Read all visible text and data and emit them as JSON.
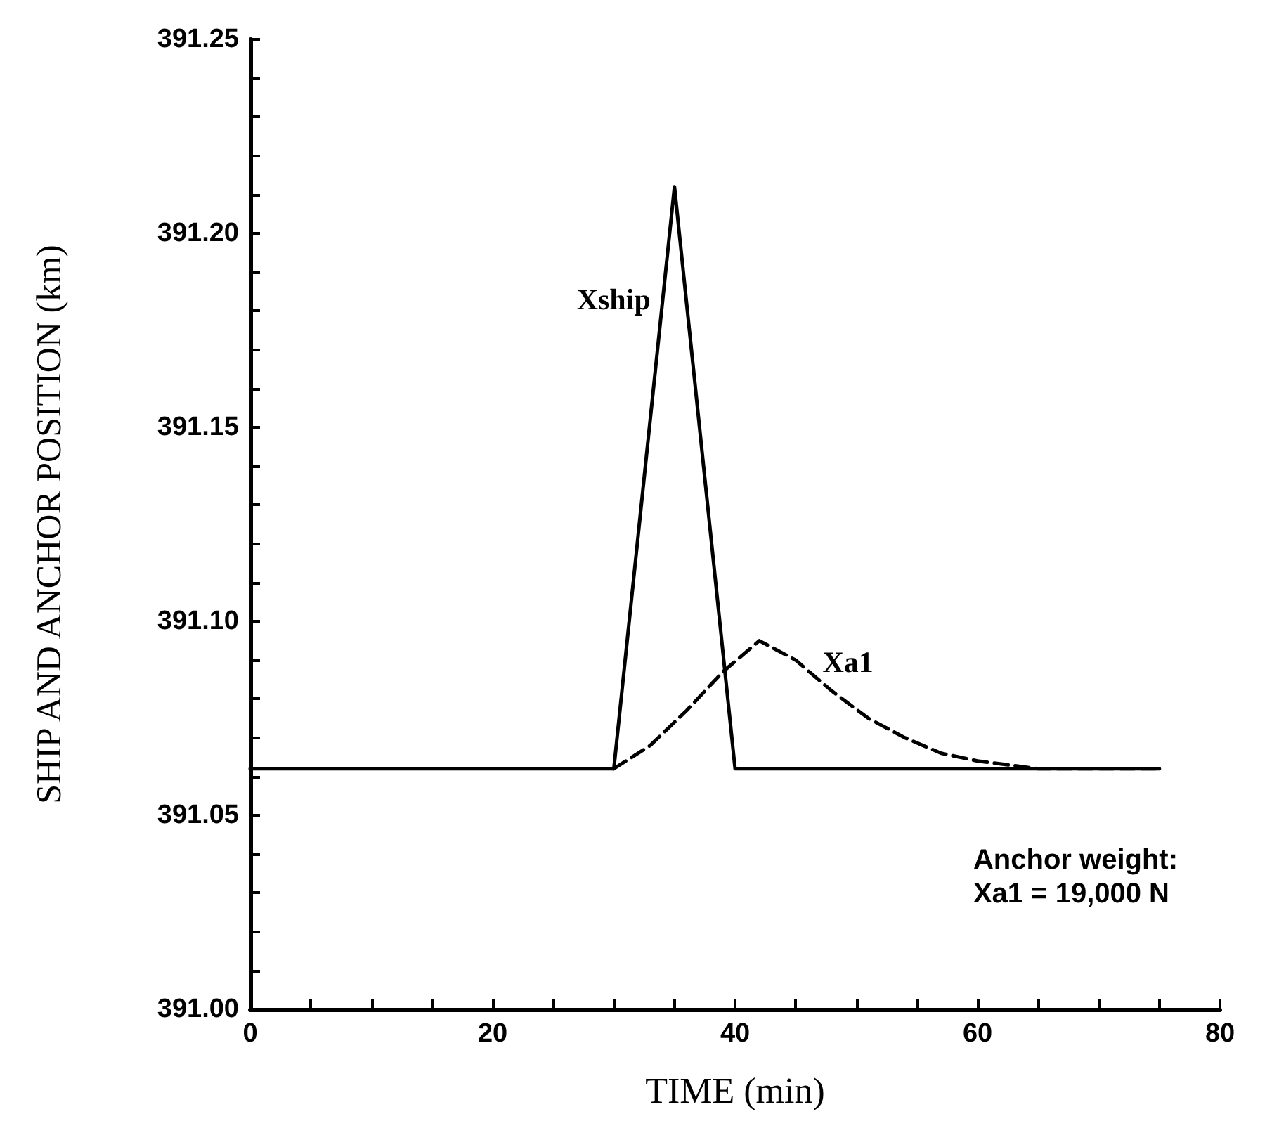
{
  "chart_data": {
    "type": "line",
    "xlabel": "TIME (min)",
    "ylabel": "SHIP AND ANCHOR POSITION (km)",
    "series": [
      {
        "name": "Xship",
        "color": "#000000",
        "line_style": "solid",
        "x": [
          0,
          30,
          35,
          40,
          75
        ],
        "values": [
          391.062,
          391.062,
          391.212,
          391.062,
          391.062
        ]
      },
      {
        "name": "Xa1",
        "color": "#000000",
        "line_style": "dashed",
        "x": [
          30,
          33,
          36,
          39,
          42,
          45,
          48,
          51,
          54,
          57,
          60,
          65,
          75
        ],
        "values": [
          391.062,
          391.068,
          391.077,
          391.087,
          391.095,
          391.09,
          391.082,
          391.075,
          391.07,
          391.066,
          391.064,
          391.062,
          391.062
        ]
      }
    ],
    "xlim": [
      0,
      80
    ],
    "ylim": [
      391.0,
      391.25
    ],
    "xticks": [
      0,
      {
        "value": 5,
        "label": null
      },
      {
        "value": 10,
        "label": null
      },
      {
        "value": 15,
        "label": null
      },
      20,
      {
        "value": 25,
        "label": null
      },
      {
        "value": 30,
        "label": null
      },
      {
        "value": 35,
        "label": null
      },
      40,
      {
        "value": 45,
        "label": null
      },
      {
        "value": 50,
        "label": null
      },
      {
        "value": 55,
        "label": null
      },
      60,
      {
        "value": 65,
        "label": null
      },
      {
        "value": 70,
        "label": null
      },
      {
        "value": 75,
        "label": null
      },
      80
    ],
    "yticks": [
      {
        "value": 391.0,
        "label": "391.00"
      },
      {
        "value": 391.01,
        "label": null
      },
      {
        "value": 391.02,
        "label": null
      },
      {
        "value": 391.03,
        "label": null
      },
      {
        "value": 391.04,
        "label": null
      },
      {
        "value": 391.05,
        "label": "391.05"
      },
      {
        "value": 391.06,
        "label": null
      },
      {
        "value": 391.07,
        "label": null
      },
      {
        "value": 391.08,
        "label": null
      },
      {
        "value": 391.09,
        "label": null
      },
      {
        "value": 391.1,
        "label": "391.10"
      },
      {
        "value": 391.11,
        "label": null
      },
      {
        "value": 391.12,
        "label": null
      },
      {
        "value": 391.13,
        "label": null
      },
      {
        "value": 391.14,
        "label": null
      },
      {
        "value": 391.15,
        "label": "391.15"
      },
      {
        "value": 391.16,
        "label": null
      },
      {
        "value": 391.17,
        "label": null
      },
      {
        "value": 391.18,
        "label": null
      },
      {
        "value": 391.19,
        "label": null
      },
      {
        "value": 391.2,
        "label": "391.20"
      },
      {
        "value": 391.21,
        "label": null
      },
      {
        "value": 391.22,
        "label": null
      },
      {
        "value": 391.23,
        "label": null
      },
      {
        "value": 391.24,
        "label": null
      },
      {
        "value": 391.25,
        "label": "391.25"
      }
    ],
    "grid": false,
    "marker": "none",
    "annotations": [
      "Anchor weight:\nXa1 = 19,000 N"
    ]
  }
}
